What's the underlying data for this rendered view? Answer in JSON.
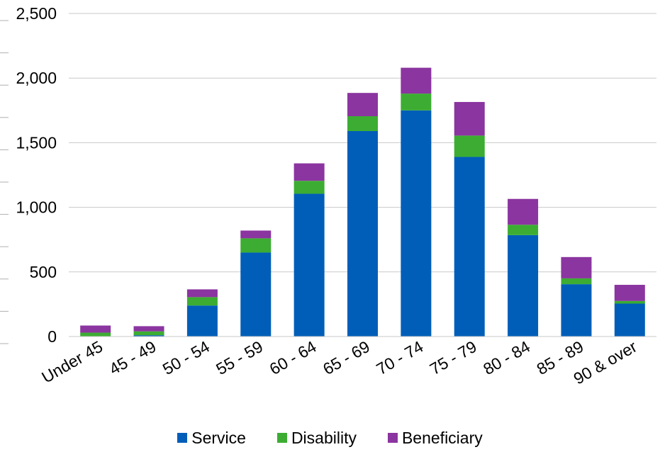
{
  "chart_data": {
    "type": "bar",
    "stacked": true,
    "categories": [
      "Under 45",
      "45 - 49",
      "50 - 54",
      "55 - 59",
      "60 - 64",
      "65 - 69",
      "70 - 74",
      "75 - 79",
      "80 - 84",
      "85 - 89",
      "90 & over"
    ],
    "series": [
      {
        "name": "Service",
        "color": "#005EB8",
        "values": [
          0,
          10,
          240,
          650,
          1105,
          1590,
          1750,
          1390,
          785,
          405,
          255
        ]
      },
      {
        "name": "Disability",
        "color": "#3CAD32",
        "values": [
          30,
          30,
          65,
          110,
          100,
          115,
          130,
          165,
          80,
          45,
          20
        ]
      },
      {
        "name": "Beneficiary",
        "color": "#8B35A0",
        "values": [
          55,
          40,
          60,
          60,
          135,
          180,
          200,
          260,
          200,
          165,
          125
        ]
      }
    ],
    "ylim": [
      0,
      2500
    ],
    "yticks": [
      0,
      500,
      1000,
      1500,
      2000,
      2500
    ],
    "ytick_labels": [
      "0",
      "500",
      "1,000",
      "1,500",
      "2,000",
      "2,500"
    ],
    "grid": true,
    "legend_position": "bottom",
    "title": "",
    "xlabel": "",
    "ylabel": ""
  }
}
